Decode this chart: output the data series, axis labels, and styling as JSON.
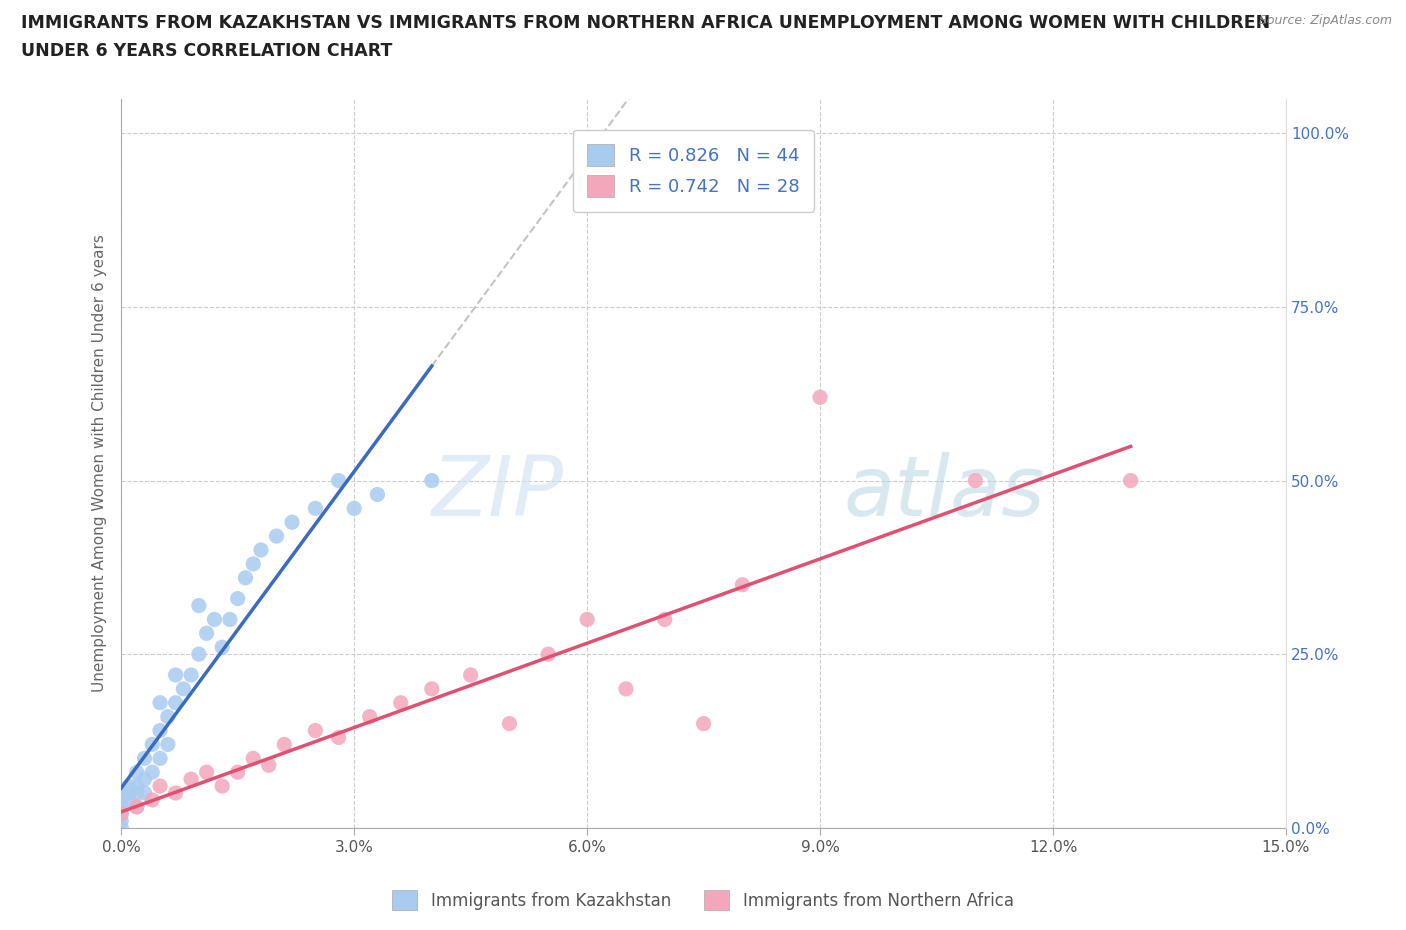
{
  "title_line1": "IMMIGRANTS FROM KAZAKHSTAN VS IMMIGRANTS FROM NORTHERN AFRICA UNEMPLOYMENT AMONG WOMEN WITH CHILDREN",
  "title_line2": "UNDER 6 YEARS CORRELATION CHART",
  "source": "Source: ZipAtlas.com",
  "ylabel": "Unemployment Among Women with Children Under 6 years",
  "xlim": [
    0.0,
    0.15
  ],
  "ylim": [
    0.0,
    1.05
  ],
  "xticks": [
    0.0,
    0.03,
    0.06,
    0.09,
    0.12,
    0.15
  ],
  "xticklabels": [
    "0.0%",
    "3.0%",
    "6.0%",
    "9.0%",
    "12.0%",
    "15.0%"
  ],
  "yticks_right": [
    0.0,
    0.25,
    0.5,
    0.75,
    1.0
  ],
  "ytick_right_labels": [
    "0.0%",
    "25.0%",
    "50.0%",
    "75.0%",
    "100.0%"
  ],
  "grid_color": "#cccccc",
  "bg_color": "#ffffff",
  "legend_text_color": "#4472c4",
  "series": [
    {
      "name": "Immigrants from Kazakhstan",
      "color": "#aacbf0",
      "line_color": "#3a6bbf",
      "R": 0.826,
      "N": 44,
      "x": [
        0.0,
        0.0,
        0.0,
        0.0,
        0.0,
        0.0,
        0.001,
        0.001,
        0.001,
        0.002,
        0.002,
        0.002,
        0.002,
        0.003,
        0.003,
        0.003,
        0.004,
        0.004,
        0.005,
        0.005,
        0.005,
        0.006,
        0.006,
        0.007,
        0.007,
        0.008,
        0.009,
        0.01,
        0.01,
        0.011,
        0.012,
        0.013,
        0.014,
        0.015,
        0.016,
        0.017,
        0.018,
        0.02,
        0.022,
        0.025,
        0.028,
        0.03,
        0.033,
        0.04
      ],
      "y": [
        0.0,
        0.01,
        0.02,
        0.03,
        0.04,
        0.05,
        0.04,
        0.05,
        0.06,
        0.03,
        0.05,
        0.06,
        0.08,
        0.05,
        0.07,
        0.1,
        0.08,
        0.12,
        0.1,
        0.14,
        0.18,
        0.12,
        0.16,
        0.18,
        0.22,
        0.2,
        0.22,
        0.25,
        0.32,
        0.28,
        0.3,
        0.26,
        0.3,
        0.33,
        0.36,
        0.38,
        0.4,
        0.42,
        0.44,
        0.46,
        0.5,
        0.46,
        0.48,
        0.5
      ]
    },
    {
      "name": "Immigrants from Northern Africa",
      "color": "#f4a7bb",
      "line_color": "#e05070",
      "R": 0.742,
      "N": 28,
      "x": [
        0.0,
        0.002,
        0.004,
        0.005,
        0.007,
        0.009,
        0.011,
        0.013,
        0.015,
        0.017,
        0.019,
        0.021,
        0.025,
        0.028,
        0.032,
        0.036,
        0.04,
        0.045,
        0.05,
        0.055,
        0.06,
        0.065,
        0.07,
        0.075,
        0.08,
        0.09,
        0.11,
        0.13
      ],
      "y": [
        0.02,
        0.03,
        0.04,
        0.06,
        0.05,
        0.07,
        0.08,
        0.06,
        0.08,
        0.1,
        0.09,
        0.12,
        0.14,
        0.13,
        0.16,
        0.18,
        0.2,
        0.22,
        0.15,
        0.25,
        0.3,
        0.2,
        0.3,
        0.15,
        0.35,
        0.62,
        0.5,
        0.5
      ]
    }
  ]
}
